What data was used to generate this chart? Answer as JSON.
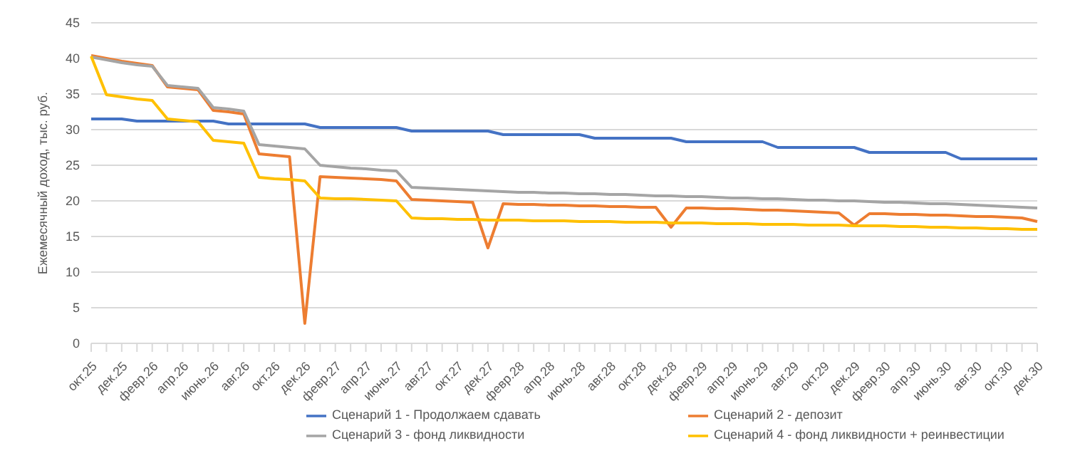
{
  "chart_data": {
    "type": "line",
    "ylabel": "Ежемесячный доход, тыс. руб.",
    "categories": [
      "окт.25",
      null,
      "дек.25",
      null,
      "февр.26",
      null,
      "апр.26",
      null,
      "июнь.26",
      null,
      "авг.26",
      null,
      "окт.26",
      null,
      "дек.26",
      null,
      "февр.27",
      null,
      "апр.27",
      null,
      "июнь.27",
      null,
      "авг.27",
      null,
      "окт.27",
      null,
      "дек.27",
      null,
      "февр.28",
      null,
      "апр.28",
      null,
      "июнь.28",
      null,
      "авг.28",
      null,
      "окт.28",
      null,
      "дек.28",
      null,
      "февр.29",
      null,
      "апр.29",
      null,
      "июнь.29",
      null,
      "авг.29",
      null,
      "окт.29",
      null,
      "дек.29",
      null,
      "февр.30",
      null,
      "апр.30",
      null,
      "июнь.30",
      null,
      "авг.30",
      null,
      "окт.30",
      null,
      "дек.30"
    ],
    "series": [
      {
        "name": "Сценарий 1 - Продолжаем сдавать",
        "color": "#4472c4",
        "values": [
          31.5,
          31.5,
          31.5,
          31.2,
          31.2,
          31.2,
          31.2,
          31.2,
          31.2,
          30.8,
          30.8,
          30.8,
          30.8,
          30.8,
          30.8,
          30.3,
          30.3,
          30.3,
          30.3,
          30.3,
          30.3,
          29.8,
          29.8,
          29.8,
          29.8,
          29.8,
          29.8,
          29.3,
          29.3,
          29.3,
          29.3,
          29.3,
          29.3,
          28.8,
          28.8,
          28.8,
          28.8,
          28.8,
          28.8,
          28.3,
          28.3,
          28.3,
          28.3,
          28.3,
          28.3,
          27.5,
          27.5,
          27.5,
          27.5,
          27.5,
          27.5,
          26.8,
          26.8,
          26.8,
          26.8,
          26.8,
          26.8,
          25.9,
          25.9,
          25.9,
          25.9,
          25.9,
          25.9
        ]
      },
      {
        "name": "Сценарий 2 - депозит",
        "color": "#ed7d31",
        "values": [
          40.4,
          40.0,
          39.6,
          39.3,
          39.0,
          36.0,
          35.8,
          35.6,
          32.7,
          32.5,
          32.2,
          26.6,
          26.4,
          26.2,
          2.8,
          23.4,
          23.3,
          23.2,
          23.1,
          23.0,
          22.8,
          20.2,
          20.1,
          20.0,
          19.9,
          19.8,
          13.4,
          19.6,
          19.5,
          19.5,
          19.4,
          19.4,
          19.3,
          19.3,
          19.2,
          19.2,
          19.1,
          19.1,
          16.3,
          19.0,
          19.0,
          18.9,
          18.9,
          18.8,
          18.7,
          18.7,
          18.6,
          18.5,
          18.4,
          18.3,
          16.6,
          18.2,
          18.2,
          18.1,
          18.1,
          18.0,
          18.0,
          17.9,
          17.8,
          17.8,
          17.7,
          17.6,
          17.1
        ]
      },
      {
        "name": "Сценарий 3 - фонд ликвидности",
        "color": "#a5a5a5",
        "values": [
          40.2,
          39.8,
          39.4,
          39.1,
          38.9,
          36.2,
          36.0,
          35.8,
          33.1,
          32.9,
          32.6,
          27.9,
          27.7,
          27.5,
          27.3,
          25.0,
          24.8,
          24.6,
          24.5,
          24.3,
          24.2,
          21.9,
          21.8,
          21.7,
          21.6,
          21.5,
          21.4,
          21.3,
          21.2,
          21.2,
          21.1,
          21.1,
          21.0,
          21.0,
          20.9,
          20.9,
          20.8,
          20.7,
          20.7,
          20.6,
          20.6,
          20.5,
          20.4,
          20.4,
          20.3,
          20.3,
          20.2,
          20.1,
          20.1,
          20.0,
          20.0,
          19.9,
          19.8,
          19.8,
          19.7,
          19.6,
          19.6,
          19.5,
          19.4,
          19.3,
          19.2,
          19.1,
          19.0
        ]
      },
      {
        "name": "Сценарий 4 - фонд ликвидности + реинвестиции",
        "color": "#ffc000",
        "values": [
          40.3,
          34.9,
          34.6,
          34.3,
          34.1,
          31.5,
          31.3,
          31.1,
          28.5,
          28.3,
          28.1,
          23.3,
          23.1,
          23.0,
          22.8,
          20.4,
          20.3,
          20.3,
          20.2,
          20.1,
          20.0,
          17.6,
          17.5,
          17.5,
          17.4,
          17.4,
          17.3,
          17.3,
          17.3,
          17.2,
          17.2,
          17.2,
          17.1,
          17.1,
          17.1,
          17.0,
          17.0,
          17.0,
          16.9,
          16.9,
          16.9,
          16.8,
          16.8,
          16.8,
          16.7,
          16.7,
          16.7,
          16.6,
          16.6,
          16.6,
          16.5,
          16.5,
          16.5,
          16.4,
          16.4,
          16.3,
          16.3,
          16.2,
          16.2,
          16.1,
          16.1,
          16.0,
          16.0
        ]
      }
    ],
    "ylim": [
      0,
      45
    ],
    "yticks": [
      0,
      5,
      10,
      15,
      20,
      25,
      30,
      35,
      40,
      45
    ],
    "grid": "y",
    "legend": "bottom"
  }
}
